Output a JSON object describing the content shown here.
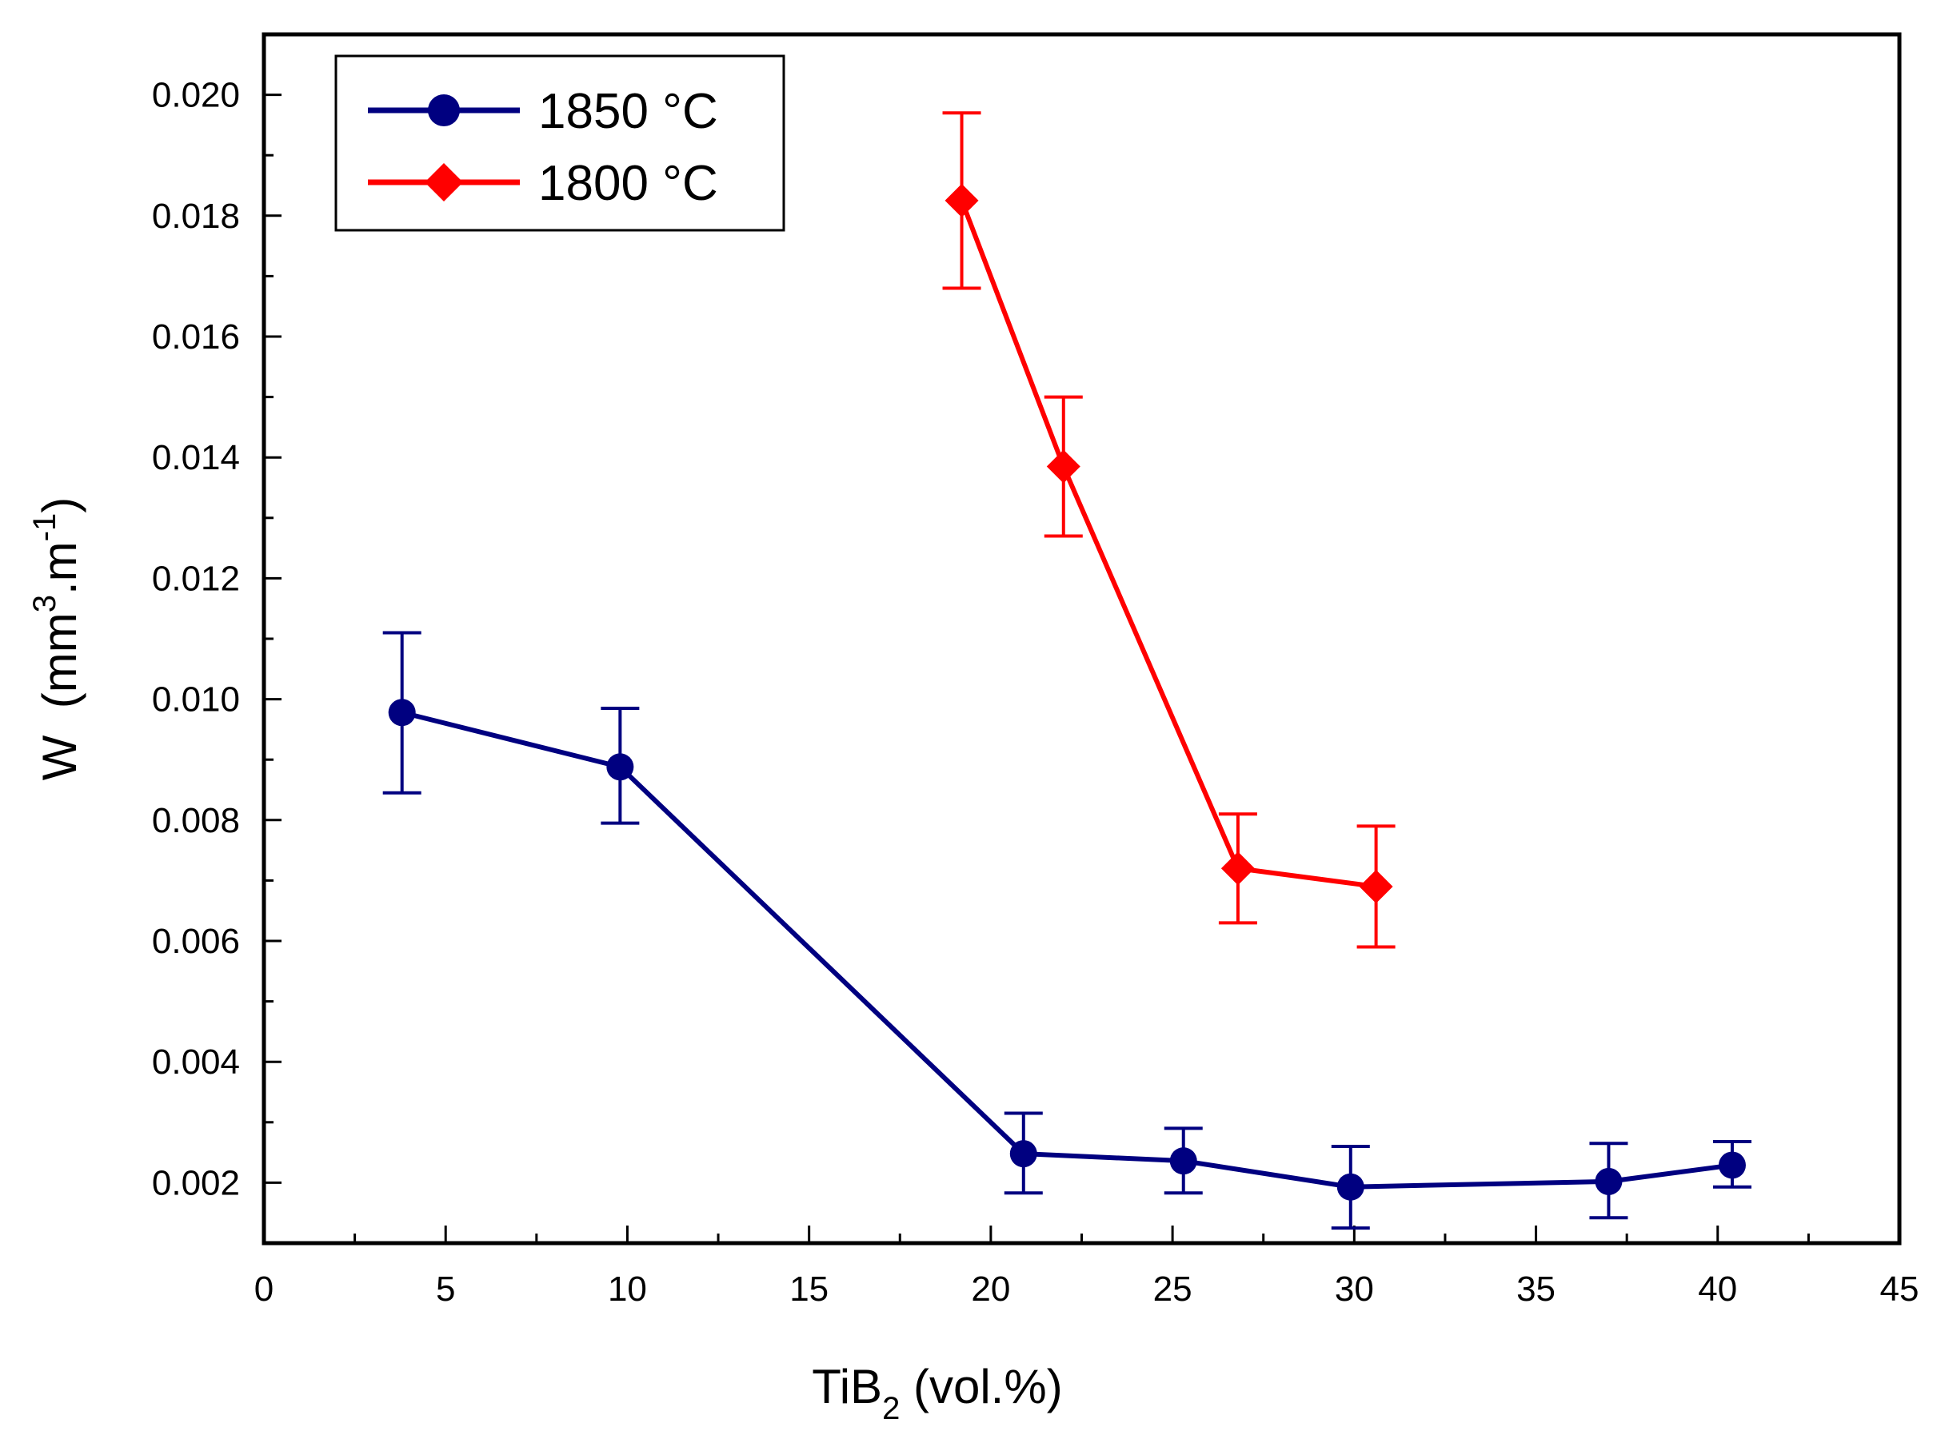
{
  "chart_data": {
    "type": "line",
    "title": "",
    "xlabel": {
      "main": "TiB",
      "sub": "2",
      "rest": " (vol.%)"
    },
    "ylabel": {
      "main": "W  (mm",
      "sup": "3",
      "mid": ".m",
      "sup2": "-1",
      "rest": ")"
    },
    "xlim": [
      0,
      45
    ],
    "ylim": [
      0.001,
      0.021
    ],
    "x_ticks": [
      0,
      5,
      10,
      15,
      20,
      25,
      30,
      35,
      40,
      45
    ],
    "x_tick_labels": [
      "0",
      "5",
      "10",
      "15",
      "20",
      "25",
      "30",
      "35",
      "40",
      "45"
    ],
    "y_ticks": [
      0.002,
      0.004,
      0.006,
      0.008,
      0.01,
      0.012,
      0.014,
      0.016,
      0.018,
      0.02
    ],
    "y_tick_labels": [
      "0.002",
      "0.004",
      "0.006",
      "0.008",
      "0.010",
      "0.012",
      "0.014",
      "0.016",
      "0.018",
      "0.020"
    ],
    "legend_position": "top-left",
    "grid": false,
    "series": [
      {
        "name": "1850 °C",
        "color": "#000080",
        "marker": "circle",
        "x": [
          3.8,
          9.8,
          20.9,
          25.3,
          29.9,
          37.0,
          40.4
        ],
        "y": [
          0.00978,
          0.00888,
          0.00248,
          0.00236,
          0.00193,
          0.00202,
          0.00229
        ],
        "err_low": [
          0.00845,
          0.00795,
          0.00183,
          0.00183,
          0.00125,
          0.00142,
          0.00193
        ],
        "err_high": [
          0.0111,
          0.00985,
          0.00315,
          0.0029,
          0.0026,
          0.00265,
          0.00268
        ]
      },
      {
        "name": "1800 °C",
        "color": "#ff0000",
        "marker": "diamond",
        "x": [
          19.2,
          22.0,
          26.8,
          30.6
        ],
        "y": [
          0.01825,
          0.01385,
          0.0072,
          0.0069
        ],
        "err_low": [
          0.0168,
          0.0127,
          0.0063,
          0.0059
        ],
        "err_high": [
          0.0197,
          0.015,
          0.0081,
          0.0079
        ]
      }
    ]
  }
}
